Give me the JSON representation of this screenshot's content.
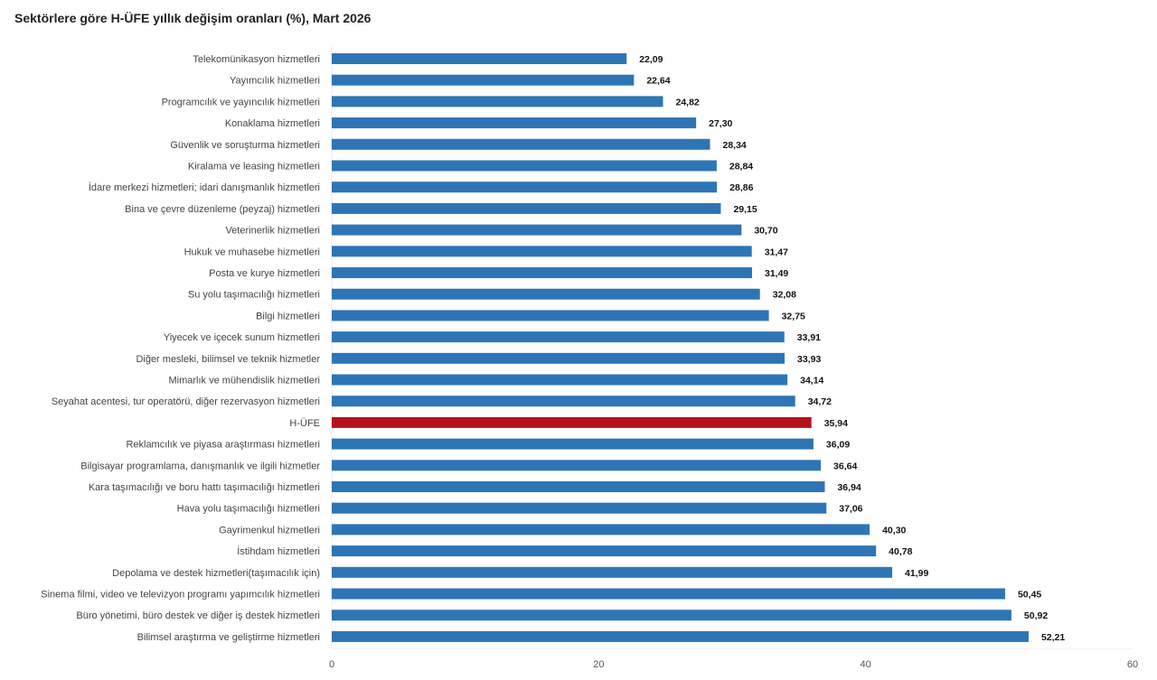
{
  "chart_data": {
    "type": "bar",
    "orientation": "horizontal",
    "title": "Sektörlere göre H-ÜFE yıllık değişim oranları (%), Mart 2026",
    "xlabel": "",
    "ylabel": "",
    "xlim": [
      0,
      60
    ],
    "xticks": [
      0,
      20,
      40,
      60
    ],
    "grid": false,
    "colors": {
      "default": "#2e75b6",
      "highlight": "#b5121b"
    },
    "highlight_category": "H-ÜFE",
    "categories": [
      "Telekomünikasyon hizmetleri",
      "Yayımcılık hizmetleri",
      "Programcılık ve yayıncılık hizmetleri",
      "Konaklama hizmetleri",
      "Güvenlik ve soruşturma hizmetleri",
      "Kiralama ve leasing hizmetleri",
      "İdare merkezi hizmetleri; idari danışmanlık hizmetleri",
      "Bina ve çevre düzenleme (peyzaj) hizmetleri",
      "Veterinerlik hizmetleri",
      "Hukuk ve muhasebe hizmetleri",
      "Posta ve kurye hizmetleri",
      "Su yolu taşımacılığı hizmetleri",
      "Bilgi hizmetleri",
      "Yiyecek ve içecek sunum hizmetleri",
      "Diğer mesleki, bilimsel ve teknik hizmetler",
      "Mimarlık ve mühendislik hizmetleri",
      "Seyahat acentesi, tur operatörü, diğer rezervasyon hizmetleri",
      "H-ÜFE",
      "Reklamcılık ve piyasa araştırması hizmetleri",
      "Bilgisayar programlama, danışmanlık ve ilgili hizmetler",
      "Kara taşımacılığı ve boru hattı taşımacılığı hizmetleri",
      "Hava yolu taşımacılığı hizmetleri",
      "Gayrimenkul hizmetleri",
      "İstihdam hizmetleri",
      "Depolama ve destek hizmetleri(taşımacılık için)",
      "Sinema filmi, video ve televizyon programı yapımcılık hizmetleri",
      "Büro yönetimi, büro destek ve diğer iş destek hizmetleri",
      "Bilimsel araştırma ve geliştirme hizmetleri"
    ],
    "values": [
      22.09,
      22.64,
      24.82,
      27.3,
      28.34,
      28.84,
      28.86,
      29.15,
      30.7,
      31.47,
      31.49,
      32.08,
      32.75,
      33.91,
      33.93,
      34.14,
      34.72,
      35.94,
      36.09,
      36.64,
      36.94,
      37.06,
      40.3,
      40.78,
      41.99,
      50.45,
      50.92,
      52.21
    ],
    "value_labels": [
      "22,09",
      "22,64",
      "24,82",
      "27,30",
      "28,34",
      "28,84",
      "28,86",
      "29,15",
      "30,70",
      "31,47",
      "31,49",
      "32,08",
      "32,75",
      "33,91",
      "33,93",
      "34,14",
      "34,72",
      "35,94",
      "36,09",
      "36,64",
      "36,94",
      "37,06",
      "40,30",
      "40,78",
      "41,99",
      "50,45",
      "50,92",
      "52,21"
    ]
  }
}
